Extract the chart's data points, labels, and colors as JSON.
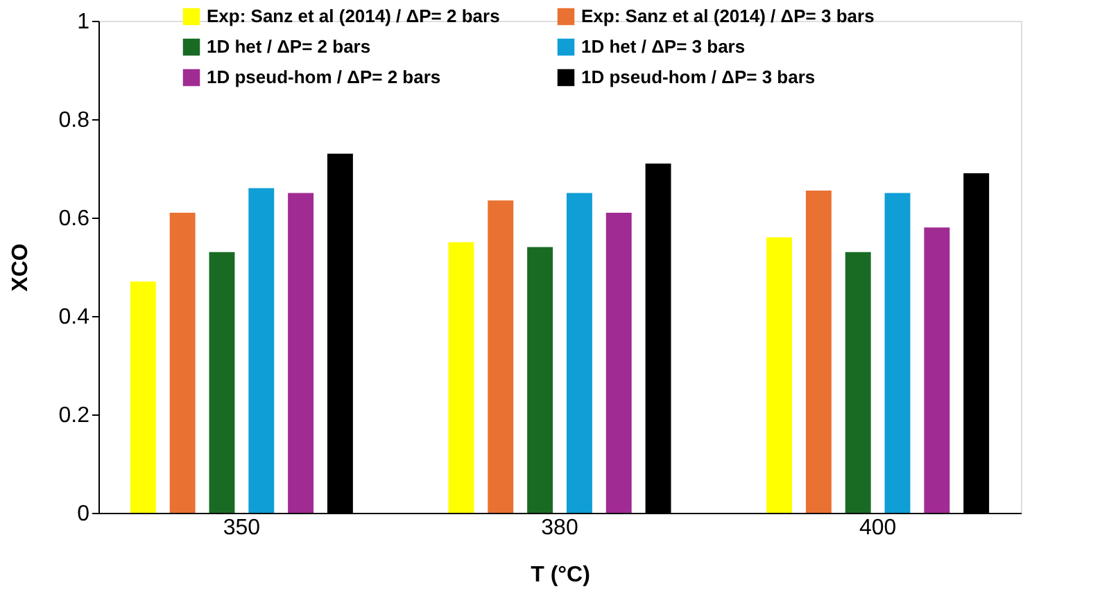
{
  "chart_data": {
    "type": "bar",
    "xlabel": "T (°C)",
    "ylabel": "XCO",
    "categories": [
      "350",
      "380",
      "400"
    ],
    "series": [
      {
        "name": "Exp: Sanz et al (2014) / ΔP= 2 bars",
        "color": "#ffff00",
        "values": [
          0.47,
          0.55,
          0.56
        ]
      },
      {
        "name": "Exp: Sanz et al (2014) / ΔP= 3 bars",
        "color": "#e97132",
        "values": [
          0.61,
          0.635,
          0.655
        ]
      },
      {
        "name": "1D het / ΔP= 2 bars",
        "color": "#196b24",
        "values": [
          0.53,
          0.54,
          0.53
        ]
      },
      {
        "name": "1D het / ΔP= 3 bars",
        "color": "#0f9ed5",
        "values": [
          0.66,
          0.65,
          0.65
        ]
      },
      {
        "name": "1D pseud-hom / ΔP= 2 bars",
        "color": "#a02b93",
        "values": [
          0.65,
          0.61,
          0.58
        ]
      },
      {
        "name": "1D pseud-hom / ΔP= 3 bars",
        "color": "#000000",
        "values": [
          0.73,
          0.71,
          0.69
        ]
      }
    ],
    "ylim": [
      0,
      1
    ],
    "yticks": [
      0,
      0.2,
      0.4,
      0.6,
      0.8,
      1
    ],
    "grid": false,
    "legend": "top"
  }
}
